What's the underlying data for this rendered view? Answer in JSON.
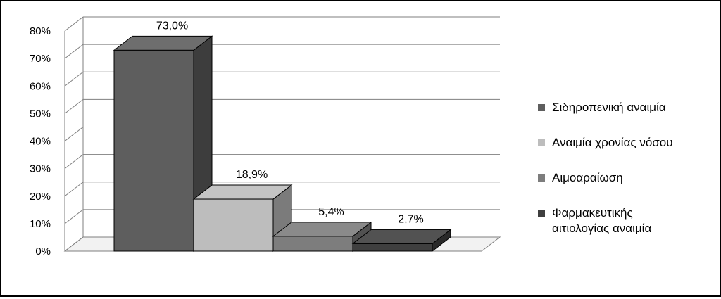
{
  "chart_data": {
    "type": "bar",
    "categories": [
      "Σιδηροπενική αναιμία",
      "Αναιμία χρονίας νόσου",
      "Αιμοαραίωση",
      "Φαρμακευτικής αιτιολογίας αναιμία"
    ],
    "values": [
      73.0,
      18.9,
      5.4,
      2.7
    ],
    "data_labels": [
      "73,0%",
      "18,9%",
      "5,4%",
      "2,7%"
    ],
    "y_ticks": [
      "0%",
      "10%",
      "20%",
      "30%",
      "40%",
      "50%",
      "60%",
      "70%",
      "80%"
    ],
    "ylim": [
      0,
      80
    ],
    "grid": true,
    "legend": "right",
    "colors": [
      "#5e5e5e",
      "#bdbdbd",
      "#7d7d7d",
      "#3f3f3f"
    ],
    "legend_lines": [
      [
        "Σιδηροπενική αναιμία"
      ],
      [
        "Αναιμία χρονίας νόσου"
      ],
      [
        "Αιμοαραίωση"
      ],
      [
        "Φαρμακευτικής",
        "αιτιολογίας αναιμία"
      ]
    ]
  }
}
